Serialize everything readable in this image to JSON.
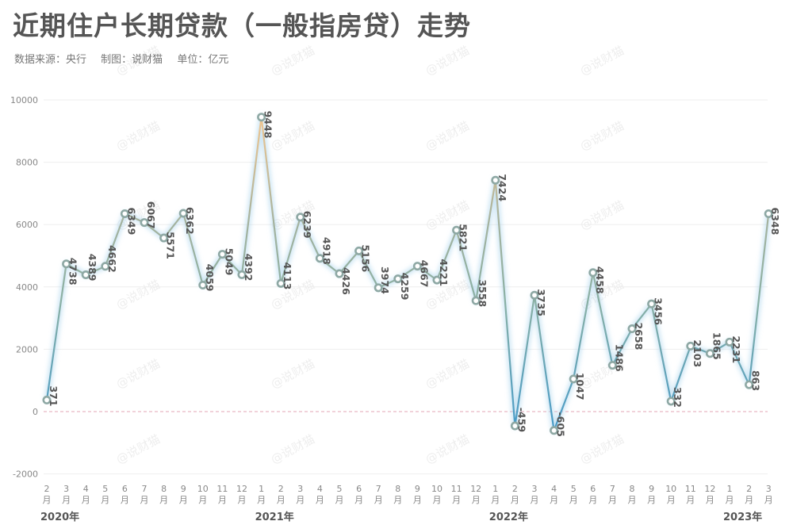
{
  "header": {
    "title": "近期住户长期贷款（一般指房贷）走势",
    "source": "数据来源：央行",
    "maker": "制图：说财猫",
    "unit": "单位：亿元"
  },
  "watermark": "@说财猫",
  "colors": {
    "low": "#4a9cc7",
    "mid": "#8ab0a4",
    "high": "#f2c690",
    "marker": "#8ea8a4",
    "zero_line": "#e3a4b4"
  },
  "chart_data": {
    "type": "line",
    "title": "近期住户长期贷款（一般指房贷）走势",
    "ylabel": "",
    "xlabel": "",
    "ylim": [
      -2000,
      10000
    ],
    "yticks": [
      -2000,
      0,
      2000,
      4000,
      6000,
      8000,
      10000
    ],
    "grid": true,
    "month_unit": "月",
    "months": [
      2,
      3,
      4,
      5,
      6,
      7,
      8,
      9,
      10,
      11,
      12,
      1,
      2,
      3,
      4,
      5,
      6,
      7,
      8,
      9,
      10,
      11,
      12,
      1,
      2,
      3,
      4,
      5,
      6,
      7,
      8,
      9,
      10,
      11,
      12,
      1,
      2,
      3
    ],
    "values": [
      371,
      4738,
      4389,
      4662,
      6349,
      6067,
      5571,
      6362,
      4059,
      5049,
      4392,
      9448,
      4113,
      6239,
      4918,
      4426,
      5156,
      3974,
      4259,
      4667,
      4221,
      5821,
      3558,
      7424,
      -459,
      3735,
      -605,
      1047,
      4458,
      1486,
      2658,
      3456,
      332,
      2103,
      1865,
      2231,
      863,
      6348
    ],
    "label_pos": [
      "below",
      "above",
      "below",
      "below",
      "above",
      "below",
      "above",
      "above",
      "below",
      "above",
      "below",
      "above",
      "below",
      "above",
      "below",
      "above",
      "above",
      "below",
      "above",
      "above",
      "below",
      "above",
      "below",
      "above",
      "below",
      "above",
      "below",
      "above",
      "above",
      "below",
      "above",
      "above",
      "below",
      "above",
      "below",
      "above",
      "below",
      "above"
    ],
    "years": [
      {
        "label": "2020年",
        "index": 0
      },
      {
        "label": "2021年",
        "index": 11
      },
      {
        "label": "2022年",
        "index": 23
      },
      {
        "label": "2023年",
        "index": 35
      }
    ]
  }
}
